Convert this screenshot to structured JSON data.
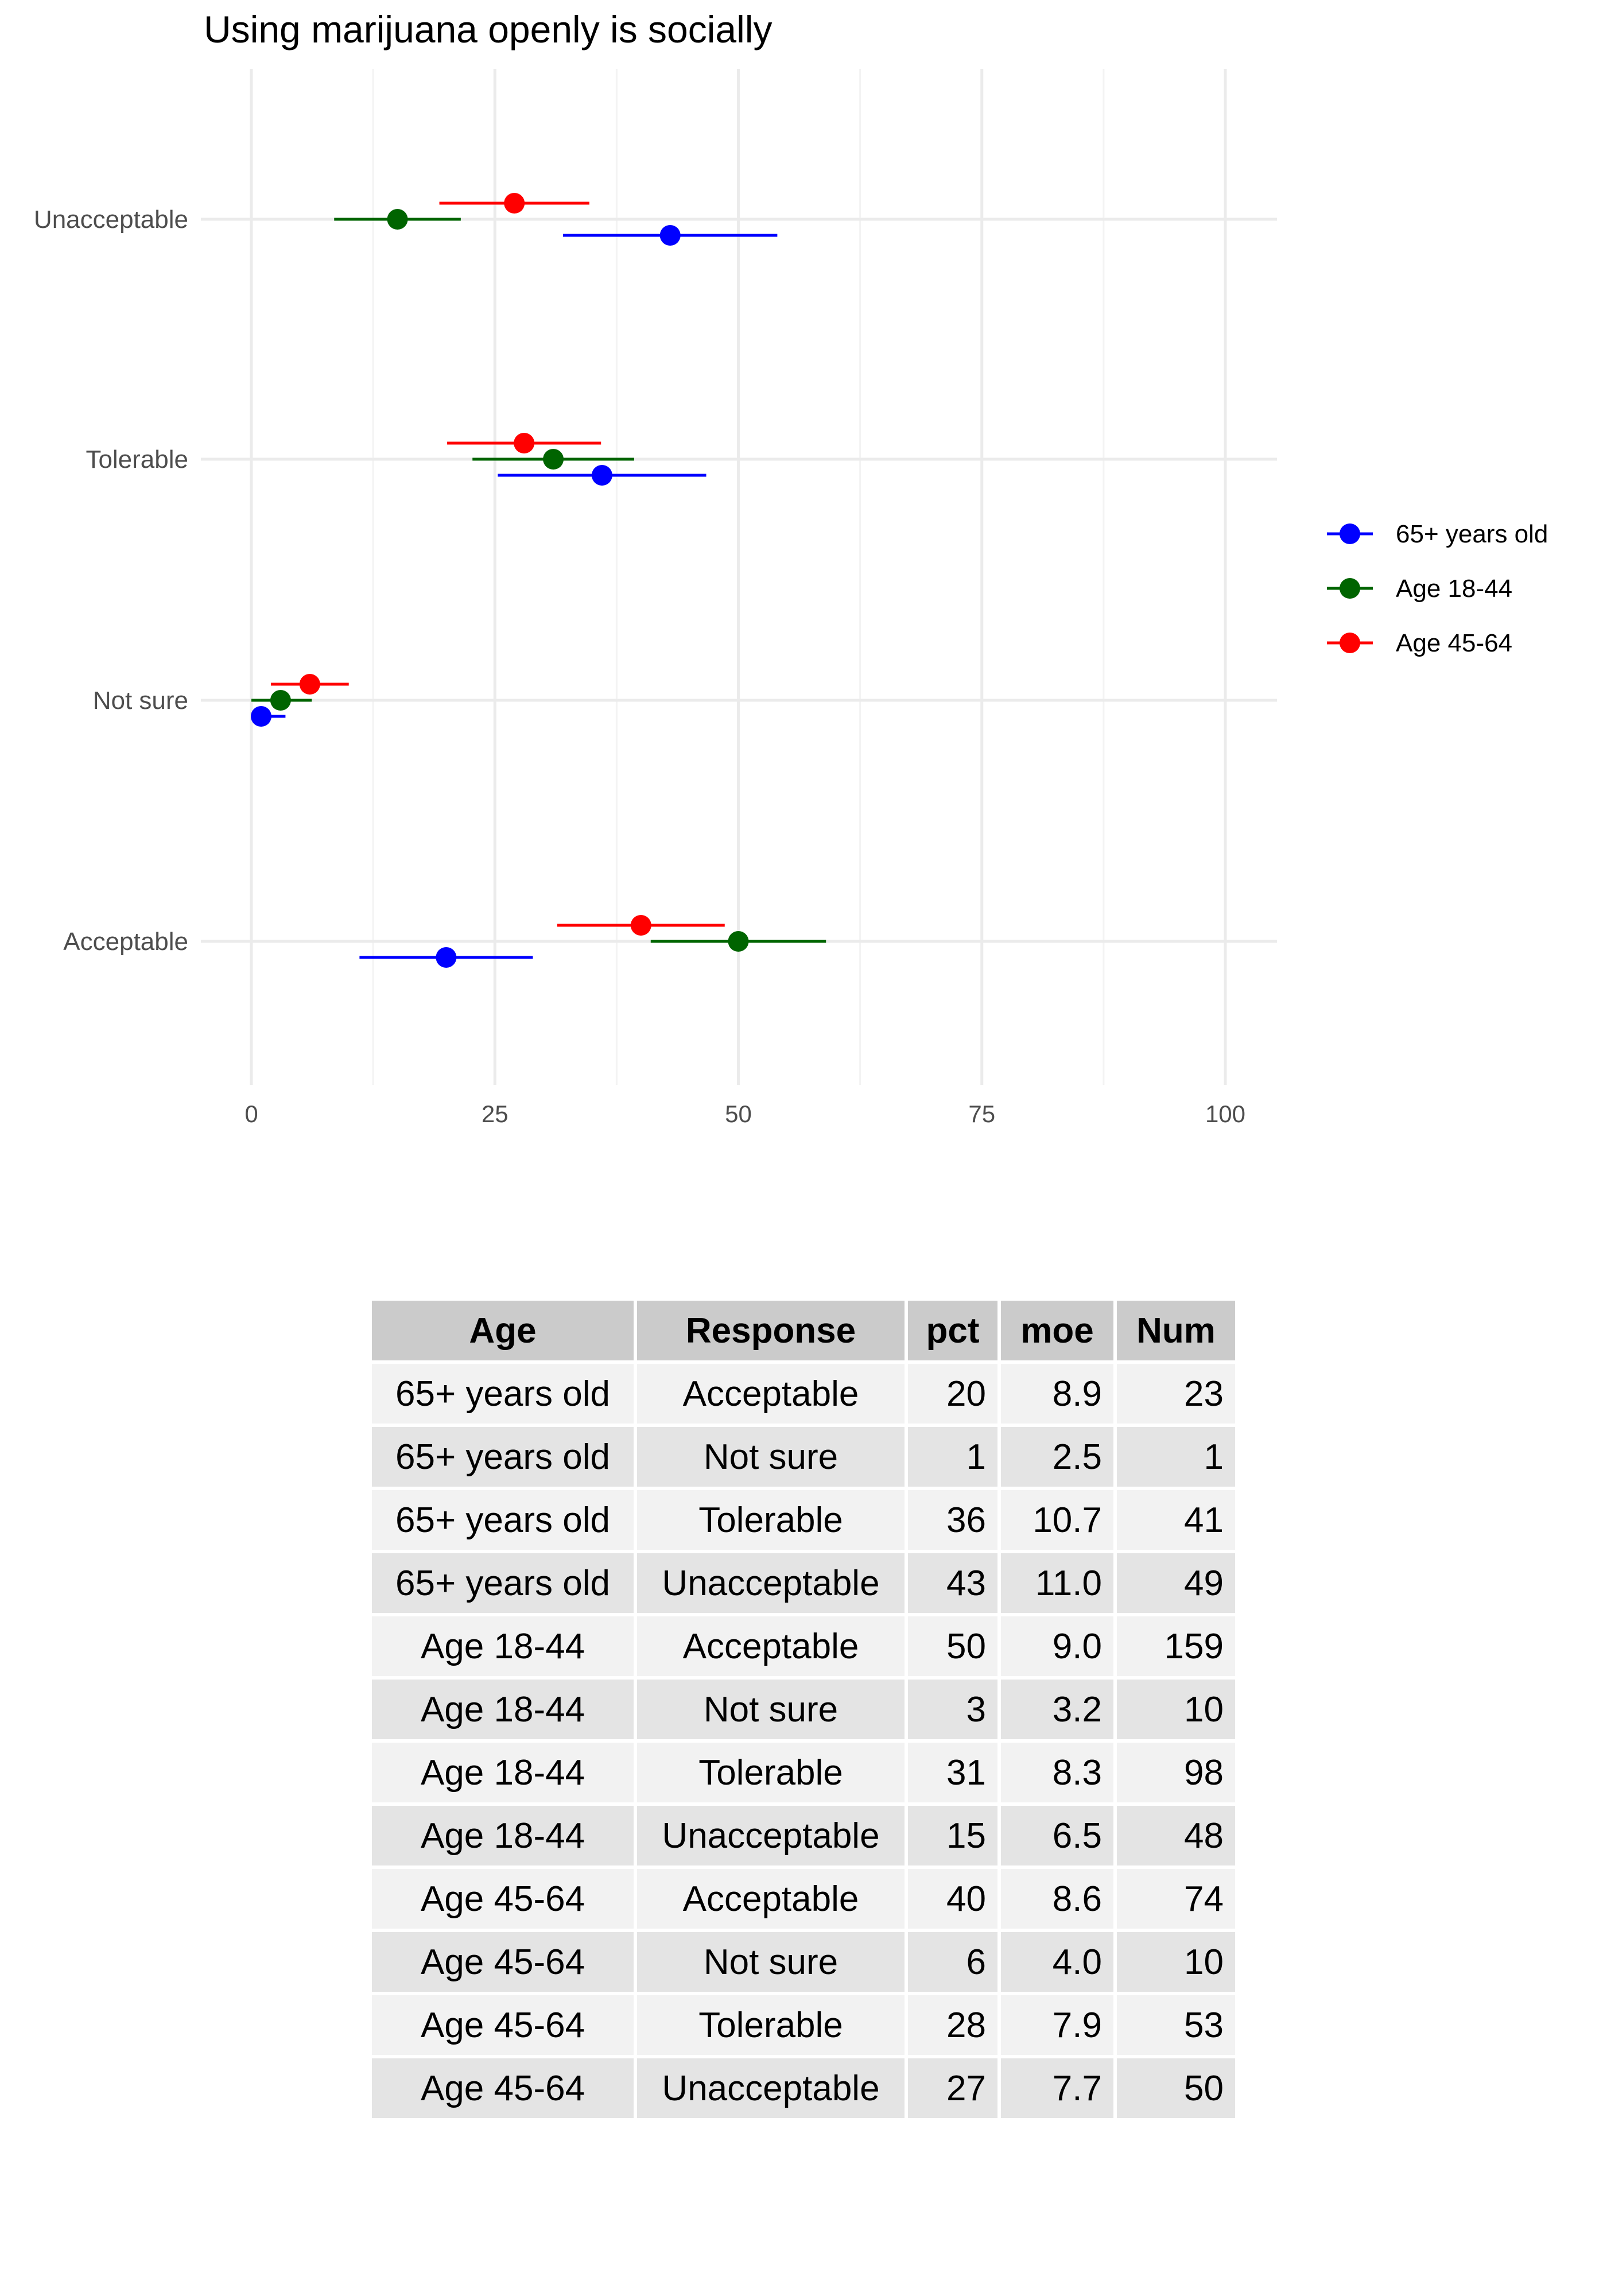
{
  "chart_data": {
    "type": "scatter",
    "title": "Using marijuana openly is socially",
    "xlabel": "",
    "ylabel": "",
    "xlim": [
      0,
      100
    ],
    "x_ticks": [
      "0",
      "25",
      "50",
      "75",
      "100"
    ],
    "categories": [
      "Acceptable",
      "Not sure",
      "Tolerable",
      "Unacceptable"
    ],
    "grid": true,
    "legend_position": "right",
    "series": [
      {
        "name": "65+ years old",
        "color": "#0000ff",
        "values": [
          20,
          1,
          36,
          43
        ],
        "moe": [
          8.9,
          2.5,
          10.7,
          11.0
        ]
      },
      {
        "name": "Age 18-44",
        "color": "#006400",
        "values": [
          50,
          3,
          31,
          15
        ],
        "moe": [
          9.0,
          3.2,
          8.3,
          6.5
        ]
      },
      {
        "name": "Age 45-64",
        "color": "#ff0000",
        "values": [
          40,
          6,
          28,
          27
        ],
        "moe": [
          8.6,
          4.0,
          7.9,
          7.7
        ]
      }
    ]
  },
  "table": {
    "headers": [
      "Age",
      "Response",
      "pct",
      "moe",
      "Num"
    ],
    "rows": [
      [
        "65+ years old",
        "Acceptable",
        "20",
        "8.9",
        "23"
      ],
      [
        "65+ years old",
        "Not sure",
        "1",
        "2.5",
        "1"
      ],
      [
        "65+ years old",
        "Tolerable",
        "36",
        "10.7",
        "41"
      ],
      [
        "65+ years old",
        "Unacceptable",
        "43",
        "11.0",
        "49"
      ],
      [
        "Age 18-44",
        "Acceptable",
        "50",
        "9.0",
        "159"
      ],
      [
        "Age 18-44",
        "Not sure",
        "3",
        "3.2",
        "10"
      ],
      [
        "Age 18-44",
        "Tolerable",
        "31",
        "8.3",
        "98"
      ],
      [
        "Age 18-44",
        "Unacceptable",
        "15",
        "6.5",
        "48"
      ],
      [
        "Age 45-64",
        "Acceptable",
        "40",
        "8.6",
        "74"
      ],
      [
        "Age 45-64",
        "Not sure",
        "6",
        "4.0",
        "10"
      ],
      [
        "Age 45-64",
        "Tolerable",
        "28",
        "7.9",
        "53"
      ],
      [
        "Age 45-64",
        "Unacceptable",
        "27",
        "7.7",
        "50"
      ]
    ]
  }
}
